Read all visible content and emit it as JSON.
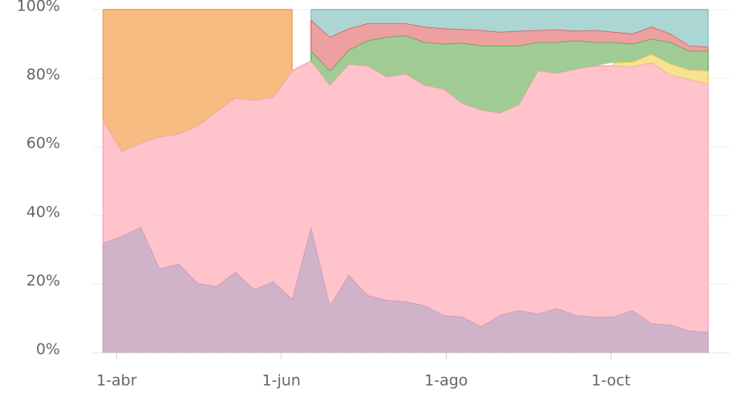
{
  "chart_data": {
    "type": "stacked_area",
    "x": [
      "27-mar",
      "3-abr",
      "10-abr",
      "17-abr",
      "24-abr",
      "1-may",
      "8-may",
      "15-may",
      "22-may",
      "29-may",
      "5-jun",
      "12-jun",
      "19-jun",
      "26-jun",
      "3-jul",
      "10-jul",
      "17-jul",
      "24-jul",
      "31-jul",
      "7-ago",
      "14-ago",
      "21-ago",
      "28-ago",
      "4-sep",
      "11-sep",
      "18-sep",
      "25-sep",
      "2-oct",
      "9-oct",
      "16-oct",
      "23-oct",
      "30-oct",
      "6-nov"
    ],
    "xlim": [
      "23-mar",
      "14-nov"
    ],
    "xticks": [
      "1-abr",
      "1-jun",
      "1-ago",
      "1-oct"
    ],
    "ylim": [
      0,
      100
    ],
    "yticks": [
      {
        "value": 0,
        "label": "0%"
      },
      {
        "value": 20,
        "label": "20%"
      },
      {
        "value": 40,
        "label": "40%"
      },
      {
        "value": 60,
        "label": "60%"
      },
      {
        "value": 80,
        "label": "80%"
      },
      {
        "value": 100,
        "label": "100%"
      }
    ],
    "grid": true,
    "series": [
      {
        "color": "#cdaec6",
        "stroke": "#c99ab8",
        "values": [
          32,
          34,
          36.7,
          24.5,
          26,
          20.3,
          19.4,
          23.6,
          18.5,
          20.8,
          15.7,
          36.7,
          13.8,
          22.7,
          16.8,
          15.4,
          15,
          13.8,
          11,
          10.5,
          7.7,
          11,
          12.4,
          11.4,
          13,
          11,
          10.5,
          10.5,
          12.4,
          8.6,
          8.2,
          6.5,
          6.1
        ]
      },
      {
        "color": "#ffc0c8",
        "stroke": "#f5a3b0",
        "values": [
          35.8,
          24.6,
          24.5,
          38.4,
          37.8,
          45.8,
          50.9,
          50.7,
          55.1,
          53.7,
          66.5,
          48.3,
          64.2,
          61.4,
          66.8,
          65,
          66.3,
          64.2,
          65.9,
          62.2,
          63.1,
          58.9,
          60,
          70.8,
          68.5,
          71.7,
          73.1,
          73.1,
          71,
          76,
          72.8,
          73.2,
          72.2
        ]
      },
      {
        "color": "#f7df8c",
        "stroke": "#e9c43e",
        "values": [
          null,
          null,
          null,
          null,
          null,
          null,
          null,
          null,
          null,
          null,
          null,
          null,
          null,
          null,
          null,
          null,
          null,
          null,
          null,
          null,
          null,
          null,
          null,
          null,
          null,
          null,
          null,
          1.0,
          1.4,
          2.5,
          3.3,
          2.8,
          3.9
        ]
      },
      {
        "color": "#9cc88f",
        "stroke": "#5ea458",
        "values": [
          null,
          null,
          null,
          null,
          null,
          null,
          null,
          null,
          null,
          null,
          null,
          3,
          4.2,
          4.2,
          7.4,
          11.6,
          11.2,
          12.5,
          13.1,
          17.6,
          18.7,
          19.6,
          17.1,
          8.3,
          9,
          8.3,
          6.9,
          5.9,
          5.2,
          4.4,
          6.2,
          5.5,
          5.8
        ]
      },
      {
        "color": "#ec9b9b",
        "stroke": "#d95a5c",
        "values": [
          null,
          null,
          null,
          null,
          null,
          null,
          null,
          null,
          null,
          null,
          null,
          9,
          9.8,
          6.2,
          5,
          4,
          3.5,
          4.5,
          4.5,
          4,
          4.5,
          4,
          4.3,
          3.5,
          3.7,
          2.8,
          3.5,
          3,
          3,
          3.5,
          2.5,
          1.5,
          1.2
        ]
      },
      {
        "color": "#f5b87b",
        "stroke": "#f09a4a",
        "values": [
          32.2,
          41.4,
          38.8,
          37.1,
          36.2,
          33.9,
          29.7,
          25.7,
          26.4,
          25.5,
          17.8,
          null,
          null,
          null,
          null,
          null,
          null,
          null,
          null,
          null,
          null,
          null,
          null,
          null,
          null,
          null,
          null,
          null,
          null,
          null,
          null,
          null,
          null
        ]
      },
      {
        "color": "#a8d4d2",
        "stroke": "#80bcb8",
        "values": [
          null,
          null,
          null,
          null,
          null,
          null,
          null,
          null,
          null,
          null,
          null,
          3,
          8,
          5.5,
          4,
          4,
          4,
          5,
          5.5,
          5.7,
          6,
          6.5,
          6.2,
          6,
          5.8,
          6.2,
          6,
          6.5,
          7,
          5,
          7,
          10.5,
          10.8
        ]
      }
    ]
  }
}
